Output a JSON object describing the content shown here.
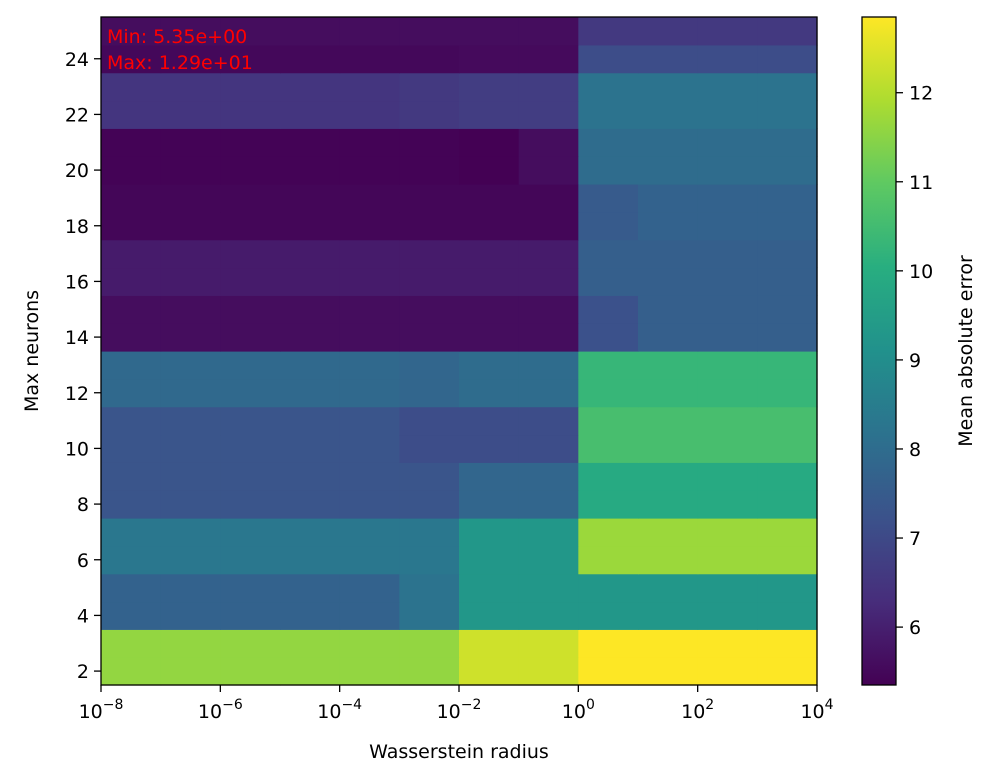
{
  "chart_data": {
    "type": "heatmap",
    "xlabel": "Wasserstein radius",
    "ylabel": "Max neurons",
    "x_scale": "log",
    "x_ticks": [
      {
        "base": "10",
        "exp": "−8"
      },
      {
        "base": "10",
        "exp": "−6"
      },
      {
        "base": "10",
        "exp": "−4"
      },
      {
        "base": "10",
        "exp": "−2"
      },
      {
        "base": "10",
        "exp": "0"
      },
      {
        "base": "10",
        "exp": "2"
      },
      {
        "base": "10",
        "exp": "4"
      }
    ],
    "x_range_log10": [
      -8,
      4
    ],
    "x_values_log10": [
      -8,
      -7,
      -6,
      -5,
      -4,
      -3,
      -2,
      -1,
      0,
      1,
      2,
      3,
      4
    ],
    "y_ticks": [
      "2",
      "4",
      "6",
      "8",
      "10",
      "12",
      "14",
      "16",
      "18",
      "20",
      "22",
      "24"
    ],
    "y_values": [
      2,
      3,
      4,
      5,
      6,
      7,
      8,
      9,
      10,
      11,
      12,
      13,
      14,
      15,
      16,
      17,
      18,
      19,
      20,
      21,
      22,
      23,
      24,
      25
    ],
    "y_range": [
      1.5,
      25.5
    ],
    "z": [
      [
        11.6,
        11.6,
        11.6,
        11.6,
        11.6,
        11.6,
        12.3,
        12.3,
        12.85,
        12.85,
        12.85,
        12.85
      ],
      [
        11.6,
        11.6,
        11.6,
        11.6,
        11.6,
        11.6,
        12.3,
        12.3,
        12.85,
        12.85,
        12.85,
        12.85
      ],
      [
        7.7,
        7.7,
        7.7,
        7.7,
        7.7,
        8.2,
        9.3,
        9.3,
        9.3,
        9.3,
        9.3,
        9.3
      ],
      [
        7.7,
        7.7,
        7.7,
        7.7,
        7.7,
        8.2,
        9.3,
        9.3,
        9.3,
        9.3,
        9.3,
        9.3
      ],
      [
        8.3,
        8.3,
        8.3,
        8.3,
        8.3,
        8.3,
        9.3,
        9.3,
        11.7,
        11.7,
        11.7,
        11.7
      ],
      [
        8.3,
        8.3,
        8.3,
        8.3,
        8.3,
        8.3,
        9.3,
        9.3,
        11.7,
        11.7,
        11.7,
        11.7
      ],
      [
        7.3,
        7.3,
        7.3,
        7.3,
        7.3,
        7.3,
        7.8,
        7.8,
        9.9,
        9.9,
        9.9,
        9.9
      ],
      [
        7.3,
        7.3,
        7.3,
        7.3,
        7.3,
        7.3,
        7.8,
        7.8,
        9.9,
        9.9,
        9.9,
        9.9
      ],
      [
        7.3,
        7.3,
        7.3,
        7.3,
        7.3,
        7.1,
        7.1,
        7.1,
        10.6,
        10.6,
        10.6,
        10.6
      ],
      [
        7.3,
        7.3,
        7.3,
        7.3,
        7.3,
        7.1,
        7.1,
        7.1,
        10.6,
        10.6,
        10.6,
        10.6
      ],
      [
        7.9,
        7.9,
        7.9,
        7.9,
        7.9,
        7.8,
        8.0,
        8.0,
        10.3,
        10.3,
        10.3,
        10.3
      ],
      [
        7.9,
        7.9,
        7.9,
        7.9,
        7.9,
        7.8,
        8.0,
        8.0,
        10.3,
        10.3,
        10.3,
        10.3
      ],
      [
        5.6,
        5.6,
        5.6,
        5.6,
        5.6,
        5.6,
        5.6,
        5.6,
        7.2,
        7.6,
        7.6,
        7.6
      ],
      [
        5.6,
        5.6,
        5.6,
        5.6,
        5.6,
        5.6,
        5.6,
        5.6,
        7.2,
        7.6,
        7.6,
        7.6
      ],
      [
        5.9,
        5.9,
        5.9,
        5.9,
        5.9,
        5.9,
        5.9,
        5.9,
        7.6,
        7.6,
        7.6,
        7.6
      ],
      [
        5.9,
        5.9,
        5.9,
        5.9,
        5.9,
        5.9,
        5.9,
        5.9,
        7.6,
        7.6,
        7.6,
        7.6
      ],
      [
        5.45,
        5.45,
        5.45,
        5.45,
        5.45,
        5.45,
        5.45,
        5.45,
        7.5,
        7.7,
        7.7,
        7.7
      ],
      [
        5.45,
        5.45,
        5.45,
        5.45,
        5.45,
        5.45,
        5.45,
        5.45,
        7.5,
        7.7,
        7.7,
        7.7
      ],
      [
        5.4,
        5.4,
        5.4,
        5.4,
        5.4,
        5.4,
        5.35,
        5.6,
        8.0,
        8.0,
        8.0,
        8.0
      ],
      [
        5.4,
        5.4,
        5.4,
        5.4,
        5.4,
        5.4,
        5.35,
        5.6,
        8.0,
        8.0,
        8.0,
        8.0
      ],
      [
        6.5,
        6.5,
        6.5,
        6.5,
        6.5,
        6.6,
        6.7,
        6.7,
        8.2,
        8.2,
        8.2,
        8.2
      ],
      [
        6.5,
        6.5,
        6.5,
        6.5,
        6.5,
        6.6,
        6.7,
        6.7,
        8.2,
        8.2,
        8.2,
        8.2
      ],
      [
        5.5,
        5.5,
        5.5,
        5.5,
        5.5,
        5.5,
        5.55,
        5.55,
        7.1,
        7.1,
        7.1,
        7.1
      ],
      [
        5.6,
        5.6,
        5.6,
        5.6,
        5.6,
        5.6,
        5.6,
        5.6,
        6.6,
        6.6,
        6.6,
        6.6
      ]
    ],
    "colormap": "viridis",
    "colorbar": {
      "label": "Mean absolute error",
      "range": [
        5.35,
        12.85
      ],
      "ticks": [
        "6",
        "7",
        "8",
        "9",
        "10",
        "11",
        "12"
      ]
    },
    "annotations": [
      {
        "text": "Min: 5.35e+00",
        "color": "#ff0000"
      },
      {
        "text": "Max: 1.29e+01",
        "color": "#ff0000"
      }
    ]
  }
}
